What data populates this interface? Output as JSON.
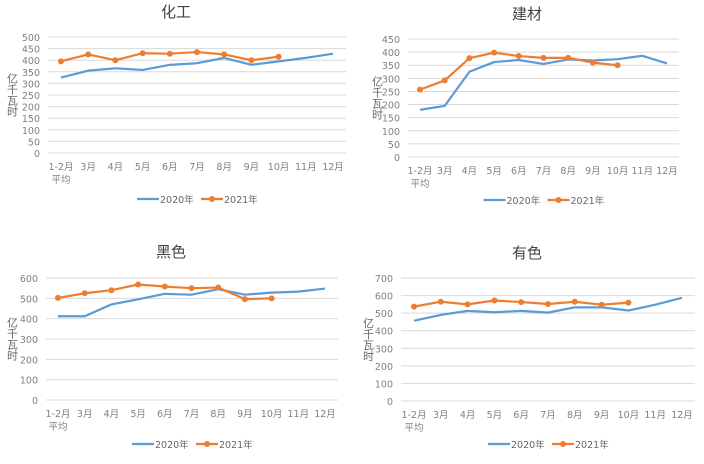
{
  "chart_data": [
    {
      "type": "line",
      "title": "化工",
      "ylabel": "亿千瓦时",
      "xlabel": "",
      "categories": [
        "1-2月\n平均",
        "3月",
        "4月",
        "5月",
        "6月",
        "7月",
        "8月",
        "9月",
        "10月",
        "11月",
        "12月"
      ],
      "ylim": [
        0,
        500
      ],
      "yticks": [
        0,
        50,
        100,
        150,
        200,
        250,
        300,
        350,
        400,
        450,
        500
      ],
      "grid": true,
      "legend": "bottom",
      "series": [
        {
          "name": "2020年",
          "color": "#5b9bd5",
          "markers": false,
          "values": [
            325,
            355,
            365,
            358,
            380,
            387,
            410,
            380,
            395,
            410,
            428
          ]
        },
        {
          "name": "2021年",
          "color": "#ed7d31",
          "markers": true,
          "values": [
            395,
            425,
            400,
            430,
            428,
            435,
            425,
            400,
            415,
            null,
            null
          ]
        }
      ]
    },
    {
      "type": "line",
      "title": "建材",
      "ylabel": "亿千瓦时",
      "xlabel": "",
      "categories": [
        "1-2月\n平均",
        "3月",
        "4月",
        "5月",
        "6月",
        "7月",
        "8月",
        "9月",
        "10月",
        "11月",
        "12月"
      ],
      "ylim": [
        0,
        450
      ],
      "yticks": [
        0,
        50,
        100,
        150,
        200,
        250,
        300,
        350,
        400,
        450
      ],
      "grid": true,
      "legend": "bottom",
      "series": [
        {
          "name": "2020年",
          "color": "#5b9bd5",
          "markers": false,
          "values": [
            180,
            195,
            325,
            362,
            370,
            355,
            372,
            368,
            373,
            386,
            357
          ]
        },
        {
          "name": "2021年",
          "color": "#ed7d31",
          "markers": true,
          "values": [
            257,
            292,
            377,
            398,
            385,
            378,
            378,
            360,
            350,
            null,
            null
          ]
        }
      ]
    },
    {
      "type": "line",
      "title": "黑色",
      "ylabel": "亿千瓦时",
      "xlabel": "",
      "categories": [
        "1-2月\n平均",
        "3月",
        "4月",
        "5月",
        "6月",
        "7月",
        "8月",
        "9月",
        "10月",
        "11月",
        "12月"
      ],
      "ylim": [
        0,
        600
      ],
      "yticks": [
        0,
        100,
        200,
        300,
        400,
        500,
        600
      ],
      "grid": true,
      "legend": "bottom",
      "series": [
        {
          "name": "2020年",
          "color": "#5b9bd5",
          "markers": false,
          "values": [
            412,
            412,
            470,
            495,
            522,
            518,
            545,
            518,
            528,
            533,
            548
          ]
        },
        {
          "name": "2021年",
          "color": "#ed7d31",
          "markers": true,
          "values": [
            502,
            525,
            540,
            568,
            558,
            550,
            553,
            496,
            500,
            null,
            null
          ]
        }
      ]
    },
    {
      "type": "line",
      "title": "有色",
      "ylabel": "亿千瓦时",
      "xlabel": "",
      "categories": [
        "1-2月\n平均",
        "3月",
        "4月",
        "5月",
        "6月",
        "7月",
        "8月",
        "9月",
        "10月",
        "11月",
        "12月"
      ],
      "ylim": [
        0,
        700
      ],
      "yticks": [
        0,
        100,
        200,
        300,
        400,
        500,
        600,
        700
      ],
      "grid": true,
      "legend": "bottom",
      "series": [
        {
          "name": "2020年",
          "color": "#5b9bd5",
          "markers": false,
          "values": [
            457,
            490,
            513,
            505,
            513,
            503,
            533,
            533,
            515,
            548,
            587
          ]
        },
        {
          "name": "2021年",
          "color": "#ed7d31",
          "markers": true,
          "values": [
            537,
            565,
            550,
            572,
            563,
            552,
            565,
            548,
            560,
            null,
            null
          ]
        }
      ]
    }
  ]
}
